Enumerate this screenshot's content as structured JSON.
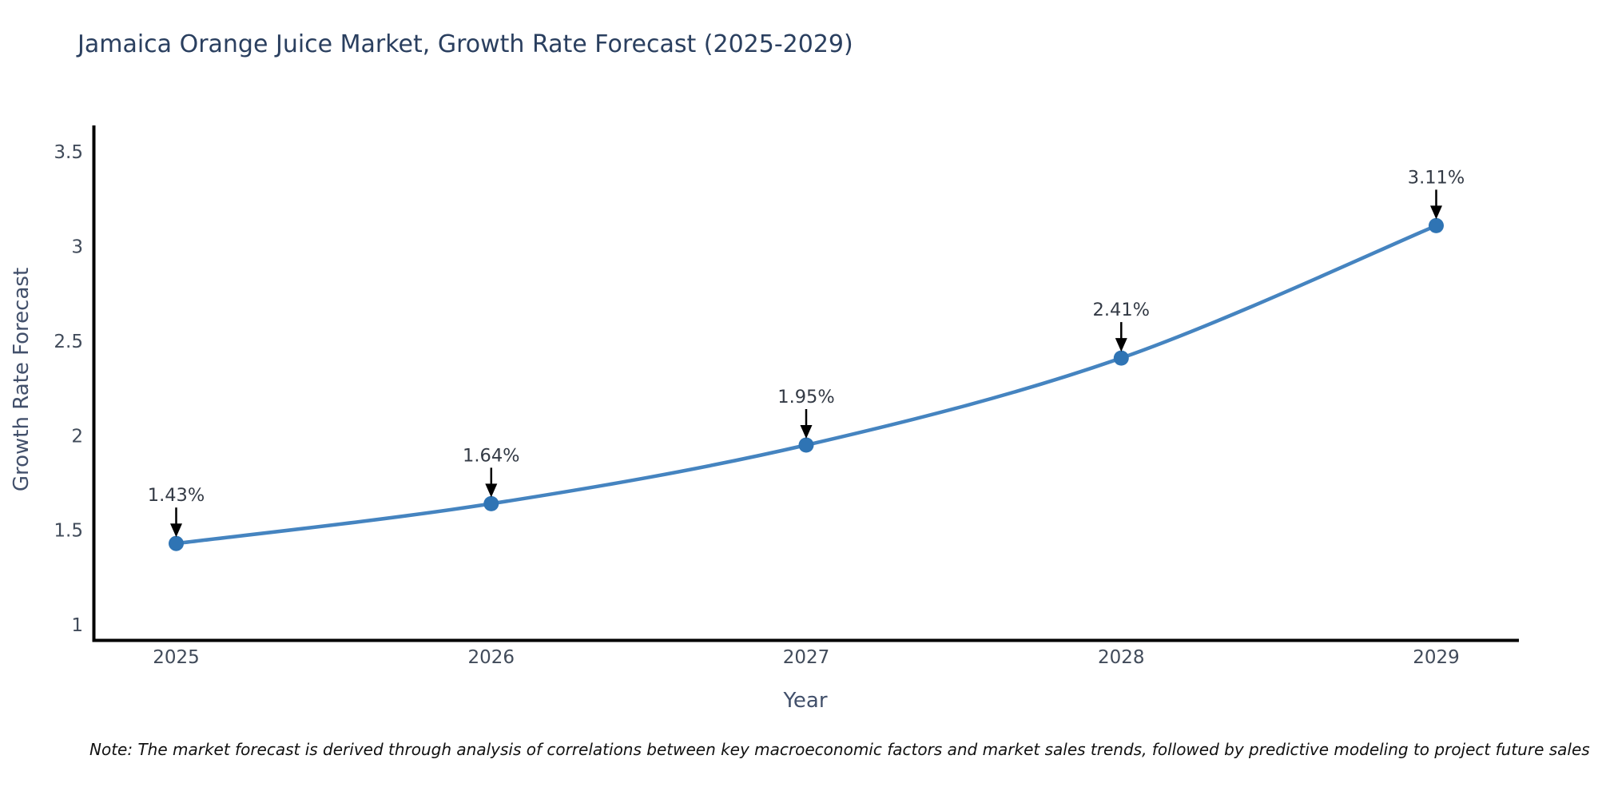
{
  "title": "Jamaica Orange Juice Market, Growth Rate Forecast (2025-2029)",
  "note": "Note: The market forecast is derived through analysis of correlations between key macroeconomic factors and market sales trends, followed by predictive modeling to project future sales",
  "chart_data": {
    "type": "line",
    "title": "Jamaica Orange Juice Market, Growth Rate Forecast (2025-2029)",
    "xlabel": "Year",
    "ylabel": "Growth Rate Forecast",
    "categories": [
      "2025",
      "2026",
      "2027",
      "2028",
      "2029"
    ],
    "series": [
      {
        "name": "Growth Rate Forecast",
        "values": [
          1.43,
          1.64,
          1.95,
          2.41,
          3.11
        ],
        "point_labels": [
          "1.43%",
          "1.64%",
          "1.95%",
          "2.41%",
          "3.11%"
        ]
      }
    ],
    "y_ticks": [
      3.5,
      3,
      2.5,
      2,
      1.5,
      1
    ],
    "ylim": [
      0.92,
      3.64
    ],
    "grid": false,
    "legend_position": "none",
    "annotations_style": "value label with black down-arrow pointing to each marker",
    "colors": {
      "line": "#4584c0",
      "marker": "#2f74b4",
      "arrow": "#000000",
      "axis_line": "#000000",
      "title_text": "#2a3f5f",
      "tick_text": "#414b5a",
      "axis_label_text": "#42506b",
      "annotation_text": "#333a45",
      "note_text": "#111111",
      "background": "#ffffff"
    }
  }
}
